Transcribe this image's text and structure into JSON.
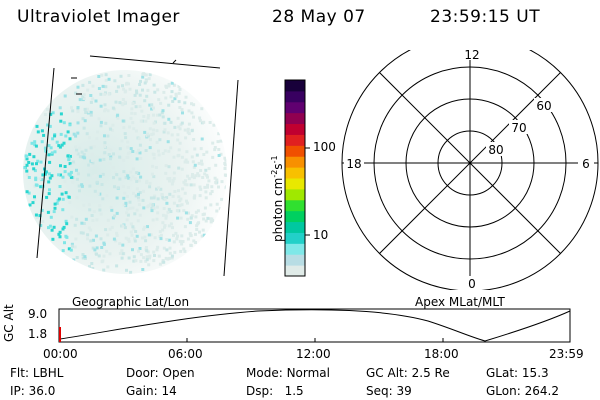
{
  "header": {
    "title": "Ultraviolet Imager",
    "date": "28 May 07",
    "time": "23:59:15 UT"
  },
  "colorbar": {
    "label": "photon cm",
    "exp1": "-2",
    "mid": "s",
    "exp2": "-1",
    "ticks": [
      "100",
      "10"
    ],
    "colors": [
      "#e0ebe8",
      "#b8dde4",
      "#7fe8e8",
      "#22d0c8",
      "#00c8a0",
      "#00d060",
      "#30e030",
      "#a0e800",
      "#e8e800",
      "#f8c000",
      "#f89000",
      "#f05000",
      "#e02020",
      "#c00030",
      "#900050",
      "#600070",
      "#380060",
      "#18003a"
    ]
  },
  "polar": {
    "mlt_labels": [
      "12",
      "18",
      "6",
      "0"
    ],
    "lat_labels": [
      "60",
      "70",
      "80"
    ]
  },
  "labels": {
    "left_panel": "Geographic Lat/Lon",
    "right_panel": "Apex MLat/MLT"
  },
  "alt_plot": {
    "axis_label": "GC Alt",
    "ymax": "9.0",
    "ymin": "1.8",
    "x_ticks": [
      "00:00",
      "06:00",
      "12:00",
      "18:00",
      "23:59"
    ]
  },
  "info": {
    "flt_label": "Flt:",
    "flt": "LBHL",
    "door_label": "Door:",
    "door": "Open",
    "mode_label": "Mode:",
    "mode": "Normal",
    "gcalt_label": "GC Alt:",
    "gcalt": "2.5 Re",
    "glat_label": "GLat:",
    "glat": "15.3",
    "ip_label": "IP:",
    "ip": "36.0",
    "gain_label": "Gain:",
    "gain": "14",
    "dsp_label": "Dsp:",
    "dsp": "1.5",
    "seq_label": "Seq:",
    "seq": "39",
    "glon_label": "GLon:",
    "glon": "264.2"
  }
}
